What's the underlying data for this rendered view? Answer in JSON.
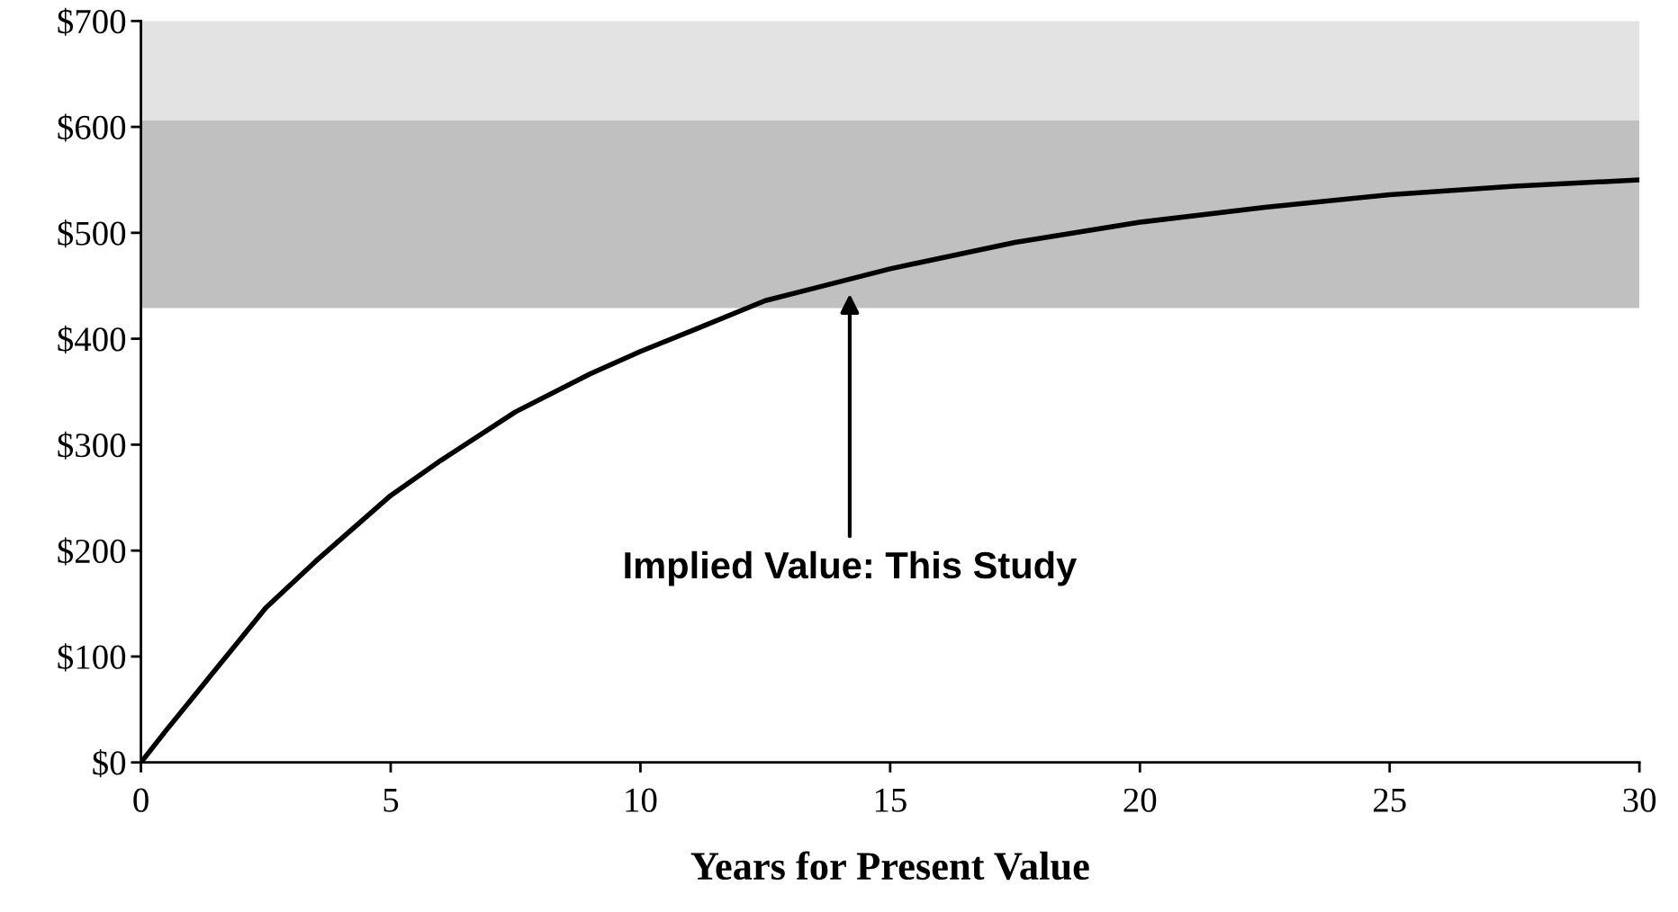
{
  "chart_data": {
    "type": "line",
    "xlabel": "Years for Present Value",
    "x": [
      0,
      0.5,
      1,
      1.5,
      2.5,
      3.5,
      5,
      6,
      7.5,
      9,
      10,
      11,
      12.5,
      13.5,
      15,
      17.5,
      20,
      22.5,
      25,
      27.5,
      30
    ],
    "series": [
      {
        "color": "#000000",
        "values": [
          0,
          30,
          59,
          88,
          146,
          190,
          252,
          285,
          331,
          367,
          388,
          407,
          436,
          448,
          466,
          491,
          510,
          524,
          536,
          544,
          550
        ]
      }
    ],
    "xlim": [
      0,
      30
    ],
    "xticks": [
      0,
      5,
      10,
      15,
      20,
      25,
      30
    ],
    "ylim": [
      0,
      700
    ],
    "yticks": [
      {
        "value": 0,
        "label": "$0"
      },
      {
        "value": 100,
        "label": "$100"
      },
      {
        "value": 200,
        "label": "$200"
      },
      {
        "value": 300,
        "label": "$300"
      },
      {
        "value": 400,
        "label": "$400"
      },
      {
        "value": 500,
        "label": "$500"
      },
      {
        "value": 600,
        "label": "$600"
      },
      {
        "value": 700,
        "label": "$700"
      }
    ],
    "bands": [
      {
        "axis": "y",
        "from": 606,
        "to": 700,
        "color": "#e3e3e3"
      },
      {
        "axis": "y",
        "from": 429,
        "to": 606,
        "color": "#c0c0c0"
      }
    ],
    "annotations": [
      "Implied Value: This Study"
    ],
    "grid": false,
    "legend": false,
    "marker": "none",
    "line_style": "solid"
  }
}
